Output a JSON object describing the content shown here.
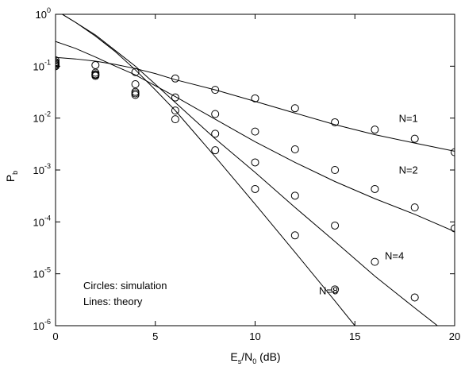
{
  "chart_data": {
    "type": "line",
    "title": "",
    "xlabel": {
      "base": "E",
      "sub1": "s",
      "mid": "/N",
      "sub2": "0",
      "tail": " (dB)"
    },
    "ylabel": {
      "base": "P",
      "sub": "b"
    },
    "xlim": [
      0,
      20
    ],
    "ylim": [
      1e-06,
      1
    ],
    "yscale": "log",
    "grid": false,
    "xticks": [
      {
        "value": 0,
        "label": "0"
      },
      {
        "value": 5,
        "label": "5"
      },
      {
        "value": 10,
        "label": "10"
      },
      {
        "value": 15,
        "label": "15"
      },
      {
        "value": 20,
        "label": "20"
      }
    ],
    "yticks": [
      {
        "value": 1,
        "base": "10",
        "exp": "0"
      },
      {
        "value": 0.1,
        "base": "10",
        "exp": "-1"
      },
      {
        "value": 0.01,
        "base": "10",
        "exp": "-2"
      },
      {
        "value": 0.001,
        "base": "10",
        "exp": "-3"
      },
      {
        "value": 0.0001,
        "base": "10",
        "exp": "-4"
      },
      {
        "value": 1e-05,
        "base": "10",
        "exp": "-5"
      },
      {
        "value": 1e-06,
        "base": "10",
        "exp": "-6"
      }
    ],
    "annotations": [
      "Circles: simulation",
      "Lines: theory"
    ],
    "series": [
      {
        "name": "N=1",
        "label_at": [
          17.2,
          0.0085
        ],
        "theory": {
          "x": [
            0,
            1,
            2,
            3,
            4,
            5,
            6,
            8,
            10,
            12,
            14,
            16,
            18,
            20
          ],
          "y": [
            0.148,
            0.138,
            0.125,
            0.108,
            0.09,
            0.072,
            0.055,
            0.035,
            0.021,
            0.0125,
            0.0075,
            0.0048,
            0.0033,
            0.0023
          ]
        },
        "simulation": {
          "x": [
            0,
            0,
            2,
            2,
            4,
            6,
            8,
            10,
            12,
            14,
            16,
            18,
            20
          ],
          "y": [
            0.13,
            0.115,
            0.105,
            0.07,
            0.077,
            0.058,
            0.035,
            0.024,
            0.0155,
            0.0083,
            0.006,
            0.004,
            0.0022
          ]
        }
      },
      {
        "name": "N=2",
        "label_at": [
          17.2,
          0.00085
        ],
        "theory": {
          "x": [
            0,
            1,
            2,
            3,
            4,
            5,
            6,
            8,
            10,
            12,
            14,
            16,
            18,
            20
          ],
          "y": [
            0.3,
            0.22,
            0.15,
            0.1,
            0.068,
            0.042,
            0.026,
            0.0095,
            0.0035,
            0.0014,
            0.0006,
            0.00028,
            0.00014,
            6.5e-05
          ]
        },
        "simulation": {
          "x": [
            0,
            0,
            2,
            4,
            4,
            6,
            8,
            10,
            12,
            14,
            16,
            18,
            20
          ],
          "y": [
            0.12,
            0.1,
            0.065,
            0.045,
            0.032,
            0.025,
            0.012,
            0.0055,
            0.0025,
            0.001,
            0.00043,
            0.00019,
            7.5e-05
          ]
        }
      },
      {
        "name": "N=4",
        "label_at": [
          16.5,
          1.9e-05
        ],
        "theory": {
          "x": [
            0,
            1,
            2,
            3,
            4,
            5,
            6,
            8,
            10,
            12,
            14,
            16,
            18,
            20
          ],
          "y": [
            1.2,
            0.7,
            0.4,
            0.2,
            0.1,
            0.045,
            0.02,
            0.004,
            0.0009,
            0.00019,
            4.2e-05,
            9e-06,
            2.2e-06,
            5.5e-07
          ]
        },
        "simulation": {
          "x": [
            0,
            2,
            4,
            6,
            8,
            10,
            12,
            14,
            16,
            18
          ],
          "y": [
            0.105,
            0.075,
            0.028,
            0.014,
            0.005,
            0.0014,
            0.00032,
            8.5e-05,
            1.7e-05,
            3.5e-06
          ]
        }
      },
      {
        "name": "N=8",
        "label_at": [
          13.2,
          4e-06
        ],
        "theory": {
          "x": [
            0,
            1,
            2,
            3,
            4,
            5,
            6,
            8,
            10,
            12,
            14,
            15,
            16
          ],
          "y": [
            1.2,
            0.7,
            0.38,
            0.19,
            0.085,
            0.035,
            0.014,
            0.0018,
            0.00022,
            2.6e-05,
            3e-06,
            1e-06,
            3.4e-07
          ]
        },
        "simulation": {
          "x": [
            0,
            2,
            4,
            6,
            8,
            10,
            12,
            14
          ],
          "y": [
            0.11,
            0.068,
            0.03,
            0.0095,
            0.0024,
            0.00043,
            5.5e-05,
            5e-06
          ]
        }
      }
    ]
  }
}
